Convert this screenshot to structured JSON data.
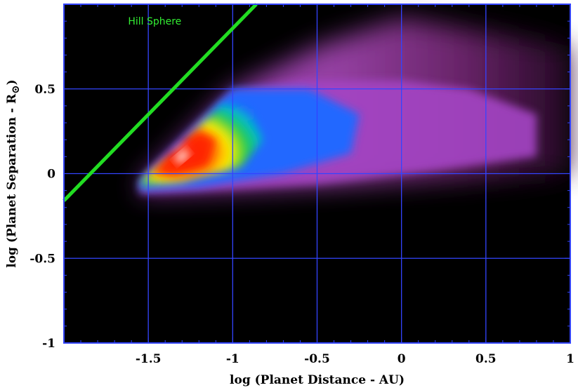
{
  "chart_data": {
    "type": "heatmap",
    "title": "",
    "xlabel": "log (Planet Distance - AU)",
    "ylabel": "log (Planet Separation - R",
    "ylabel_symbol": "⊙",
    "xlim": [
      -2.0,
      1.0
    ],
    "ylim": [
      -1.0,
      1.0
    ],
    "x_ticks": [
      -1.5,
      -1,
      -0.5,
      0,
      0.5,
      1
    ],
    "x_tick_labels": [
      "-1.5",
      "-1",
      "-0.5",
      "0",
      "0.5",
      "1"
    ],
    "y_ticks": [
      -1,
      -0.5,
      0,
      0.5
    ],
    "y_tick_labels": [
      "-1",
      "-0.5",
      "0",
      "0.5"
    ],
    "grid": true,
    "background": "#000000",
    "grid_color": "#3344ff",
    "colormap": [
      "#4a0f4a",
      "#a040b0",
      "#2060ff",
      "#22cc44",
      "#ffee00",
      "#ff2200",
      "#ffffff"
    ],
    "density_region": {
      "apex": [
        -1.55,
        -0.05
      ],
      "upper_edge": [
        [
          -1.55,
          -0.05
        ],
        [
          -1.0,
          0.5
        ],
        [
          -0.5,
          0.75
        ],
        [
          0.0,
          0.92
        ]
      ],
      "lower_edge": [
        [
          -1.55,
          -0.12
        ],
        [
          -1.0,
          -0.1
        ],
        [
          0.0,
          -0.05
        ],
        [
          1.0,
          0.0
        ]
      ],
      "peak": [
        -1.3,
        0.1
      ]
    },
    "line": {
      "name": "Hill Sphere",
      "color": "#22dd22",
      "x": [
        -2.0,
        -0.86
      ],
      "y": [
        -0.16,
        1.0
      ]
    },
    "annotations": [
      {
        "text": "Hill Sphere",
        "x": -1.62,
        "y": 0.88
      }
    ]
  }
}
